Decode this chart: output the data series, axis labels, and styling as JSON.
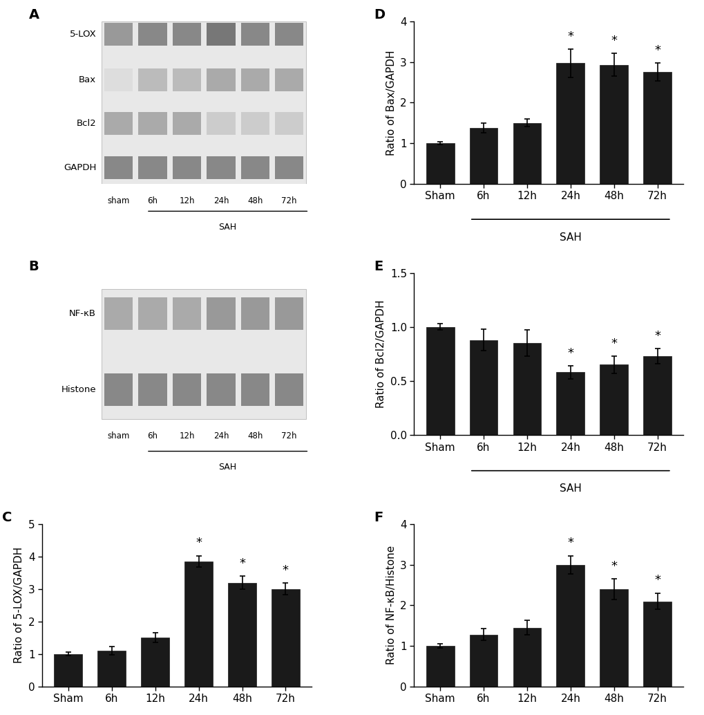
{
  "categories": [
    "Sham",
    "6h",
    "12h",
    "24h",
    "48h",
    "72h"
  ],
  "panel_C": {
    "label": "C",
    "values": [
      1.0,
      1.1,
      1.5,
      3.85,
      3.2,
      3.0
    ],
    "errors": [
      0.05,
      0.12,
      0.15,
      0.18,
      0.2,
      0.18
    ],
    "ylabel": "Ratio of 5-LOX/GAPDH",
    "ylim": [
      0,
      5
    ],
    "yticks": [
      0,
      1,
      2,
      3,
      4,
      5
    ],
    "sig": [
      false,
      false,
      false,
      true,
      true,
      true
    ]
  },
  "panel_D": {
    "label": "D",
    "values": [
      1.0,
      1.38,
      1.5,
      2.97,
      2.93,
      2.75
    ],
    "errors": [
      0.04,
      0.12,
      0.1,
      0.35,
      0.28,
      0.22
    ],
    "ylabel": "Ratio of Bax/GAPDH",
    "ylim": [
      0,
      4
    ],
    "yticks": [
      0,
      1,
      2,
      3,
      4
    ],
    "sig": [
      false,
      false,
      false,
      true,
      true,
      true
    ]
  },
  "panel_E": {
    "label": "E",
    "values": [
      1.0,
      0.88,
      0.85,
      0.58,
      0.65,
      0.73
    ],
    "errors": [
      0.03,
      0.1,
      0.12,
      0.06,
      0.08,
      0.07
    ],
    "ylabel": "Ratio of Bcl2/GAPDH",
    "ylim": [
      0.0,
      1.5
    ],
    "yticks": [
      0.0,
      0.5,
      1.0,
      1.5
    ],
    "sig": [
      false,
      false,
      false,
      true,
      true,
      true
    ]
  },
  "panel_F": {
    "label": "F",
    "values": [
      1.0,
      1.28,
      1.45,
      3.0,
      2.4,
      2.1
    ],
    "errors": [
      0.05,
      0.15,
      0.18,
      0.22,
      0.25,
      0.2
    ],
    "ylabel": "Ratio of NF-κB/Histone",
    "ylim": [
      0,
      4
    ],
    "yticks": [
      0,
      1,
      2,
      3,
      4
    ],
    "sig": [
      false,
      false,
      false,
      true,
      true,
      true
    ]
  },
  "bar_color": "#1a1a1a",
  "bar_width": 0.65,
  "font_size": 11,
  "label_font_size": 13,
  "panel_label_size": 14,
  "sah_label": "SAH",
  "background_color": "#ffffff"
}
